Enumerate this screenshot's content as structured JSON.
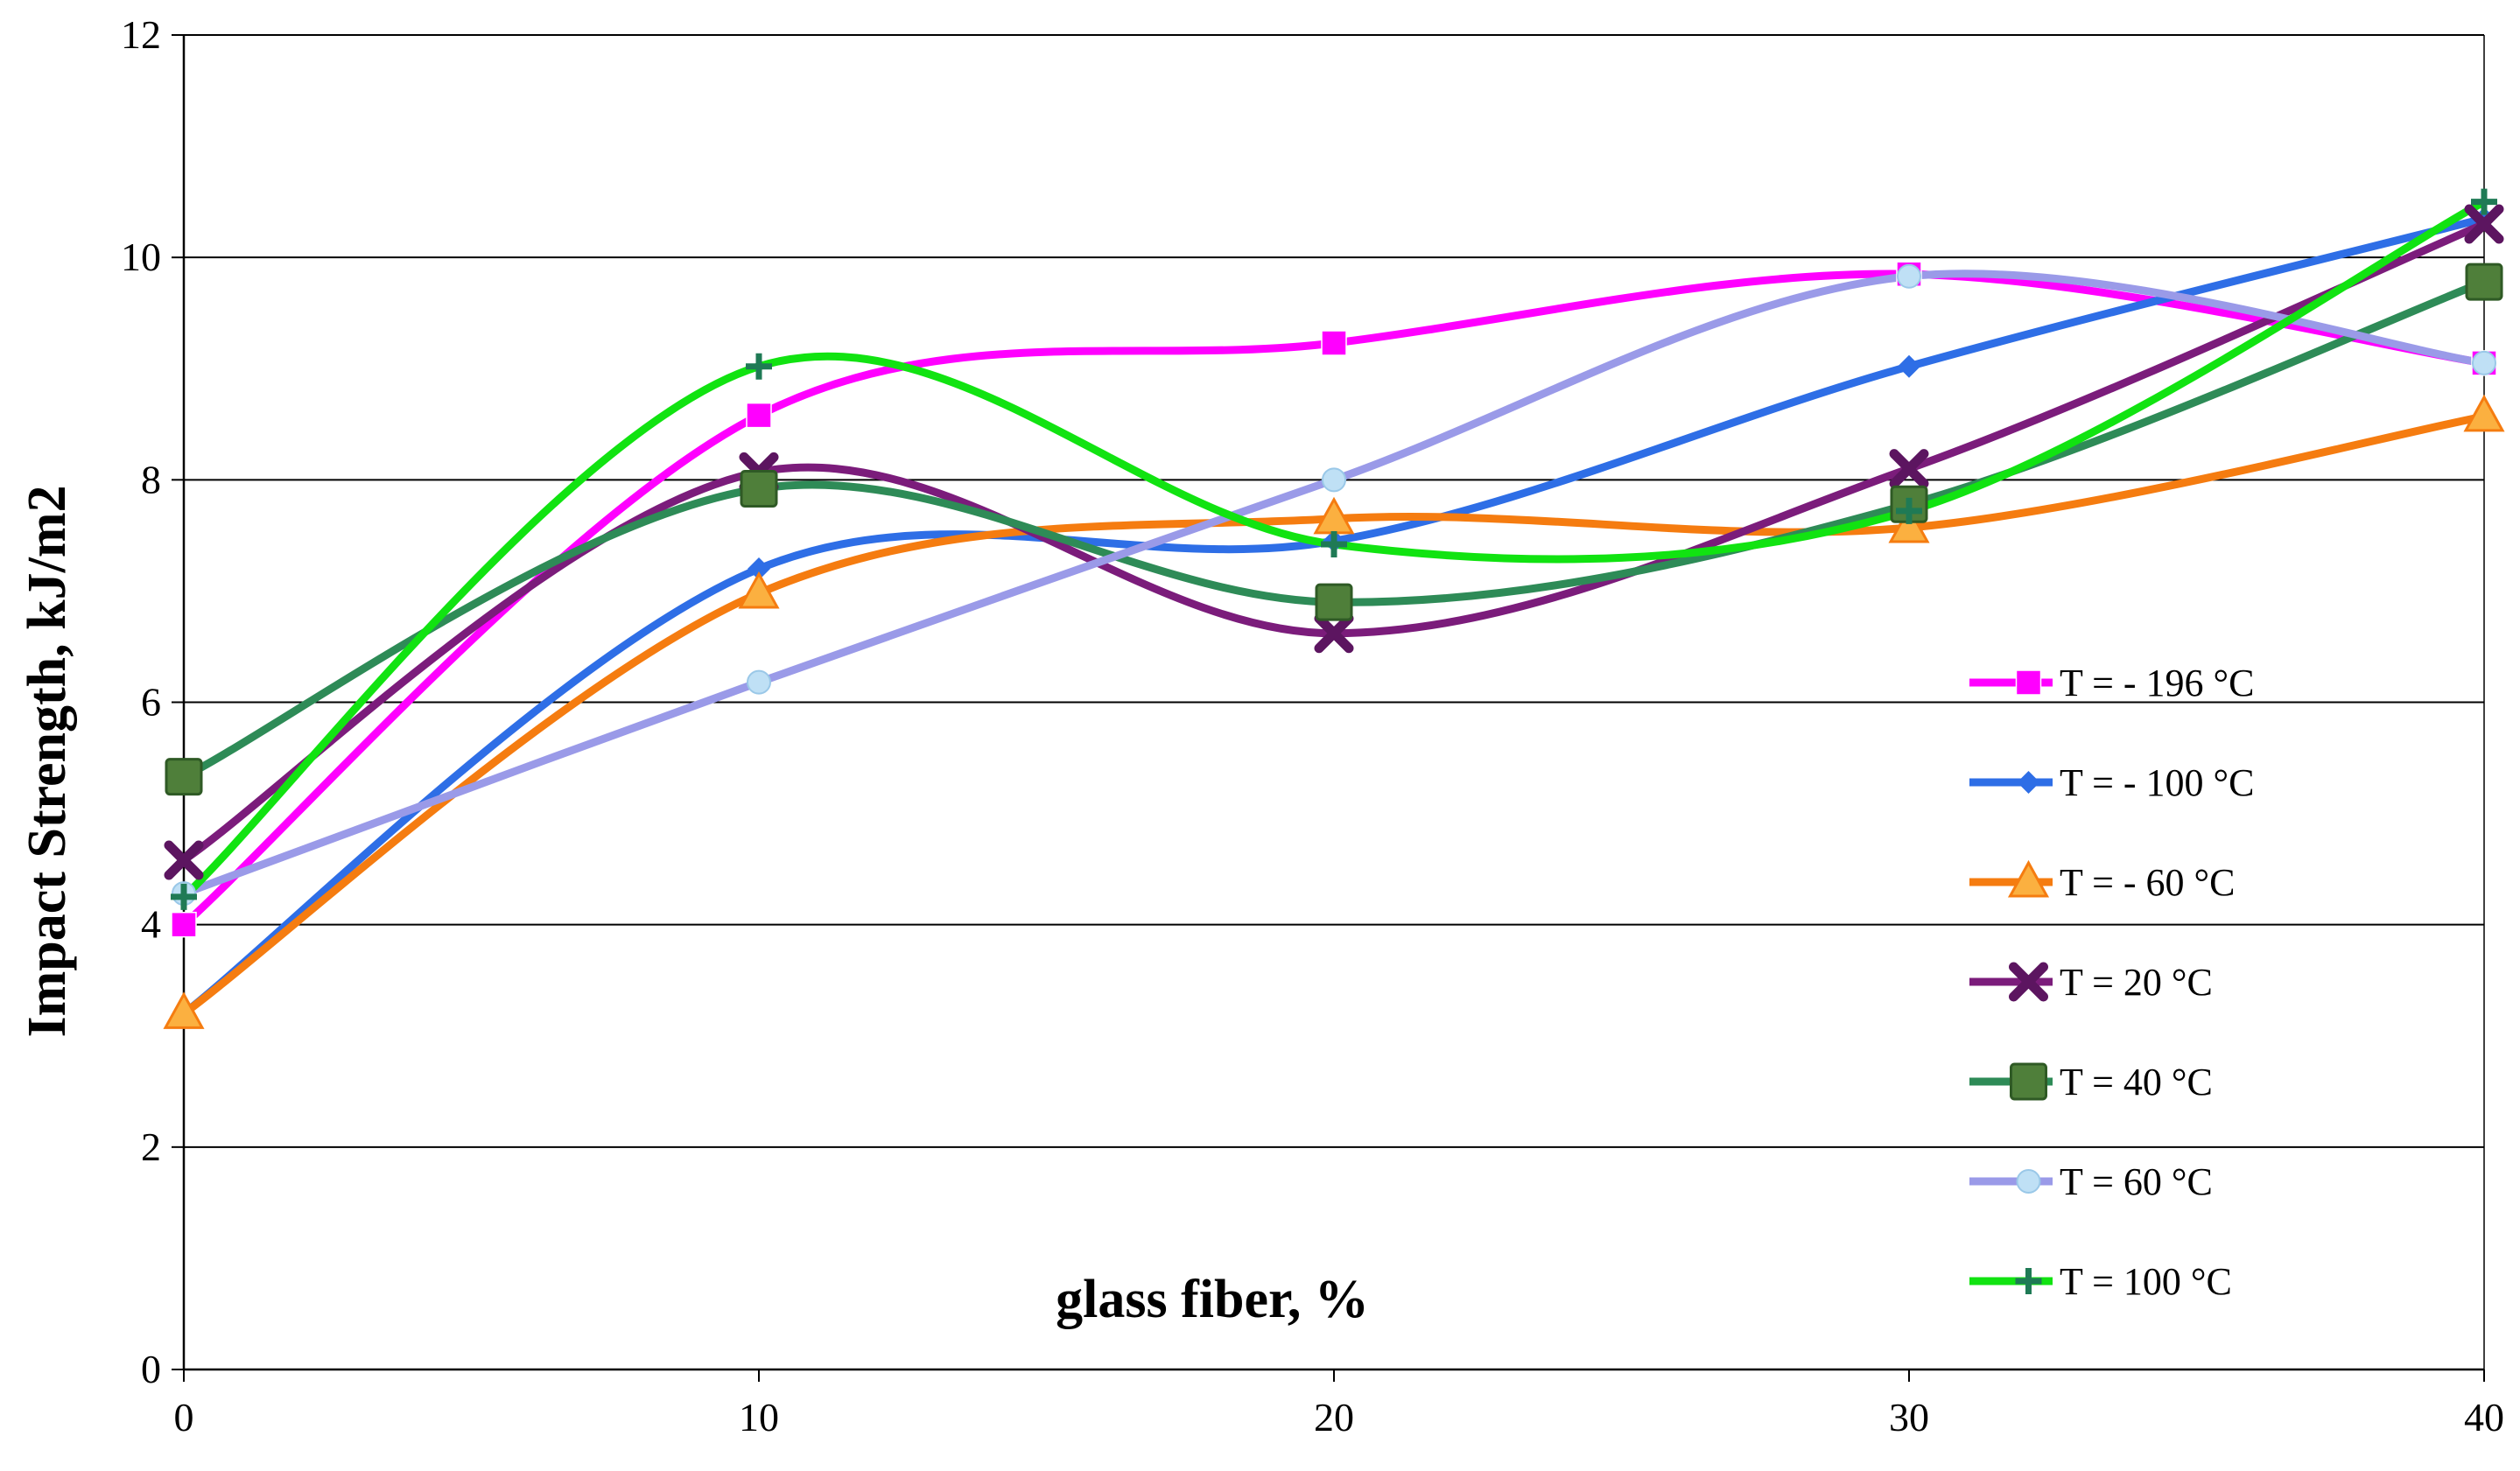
{
  "chart_data": {
    "type": "line",
    "title": "",
    "xlabel": "glass fiber, %",
    "ylabel": "Impact Strength, kJ/m2",
    "x": [
      0,
      10,
      20,
      30,
      40
    ],
    "xlim": [
      0,
      40
    ],
    "ylim": [
      0,
      12
    ],
    "xticks": [
      "0",
      "10",
      "20",
      "30",
      "40"
    ],
    "yticks": [
      "0",
      "2",
      "4",
      "6",
      "8",
      "10",
      "12"
    ],
    "grid": "horizontal",
    "legend_position": "right",
    "smooth": true,
    "series": [
      {
        "name": "T = - 196 °C",
        "color": "#ff00ff",
        "marker": "square",
        "values": [
          4.0,
          8.58,
          9.23,
          9.85,
          9.05
        ]
      },
      {
        "name": "T = - 100  °C",
        "color": "#2e6ee6",
        "marker": "diamond",
        "values": [
          3.2,
          7.2,
          7.45,
          9.02,
          10.35
        ]
      },
      {
        "name": "T = - 60  °C",
        "color": "#f57c10",
        "marker": "triangle",
        "values": [
          3.2,
          6.98,
          7.65,
          7.57,
          8.57
        ]
      },
      {
        "name": "T = 20 °C",
        "color": "#7b1c7b",
        "marker": "x",
        "values": [
          4.58,
          8.07,
          6.62,
          8.1,
          10.3
        ]
      },
      {
        "name": "T = 40 °C",
        "color": "#2e8b57",
        "marker": "bigsquare",
        "values": [
          5.33,
          7.92,
          6.9,
          7.78,
          9.78
        ]
      },
      {
        "name": "T = 60 °C",
        "color": "#9a9ae8",
        "marker": "circle",
        "values": [
          4.28,
          6.18,
          8.0,
          9.83,
          9.05
        ]
      },
      {
        "name": "T = 100  °C",
        "color": "#11e311",
        "marker": "plus",
        "values": [
          4.25,
          9.02,
          7.42,
          7.72,
          10.5
        ]
      }
    ]
  }
}
